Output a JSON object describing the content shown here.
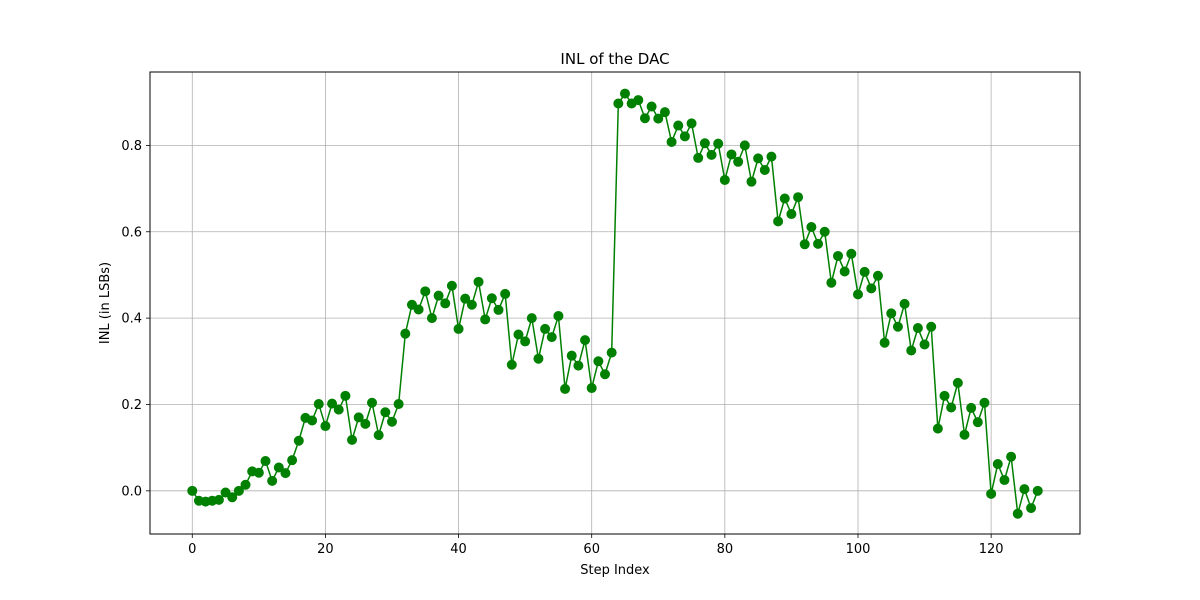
{
  "chart_data": {
    "type": "line",
    "title": "INL of the DAC",
    "xlabel": "Step Index",
    "ylabel": "INL (in LSBs)",
    "xlim": [
      -6.35,
      133.35
    ],
    "ylim": [
      -0.1,
      0.97
    ],
    "xticks": [
      0,
      20,
      40,
      60,
      80,
      100,
      120
    ],
    "yticks": [
      0.0,
      0.2,
      0.4,
      0.6,
      0.8
    ],
    "ytick_labels": [
      "0.0",
      "0.2",
      "0.4",
      "0.6",
      "0.8"
    ],
    "grid": true,
    "legend": "none",
    "series": [
      {
        "color": "#008000",
        "marker": "circle",
        "x": [
          0,
          1,
          2,
          3,
          4,
          5,
          6,
          7,
          8,
          9,
          10,
          11,
          12,
          13,
          14,
          15,
          16,
          17,
          18,
          19,
          20,
          21,
          22,
          23,
          24,
          25,
          26,
          27,
          28,
          29,
          30,
          31,
          32,
          33,
          34,
          35,
          36,
          37,
          38,
          39,
          40,
          41,
          42,
          43,
          44,
          45,
          46,
          47,
          48,
          49,
          50,
          51,
          52,
          53,
          54,
          55,
          56,
          57,
          58,
          59,
          60,
          61,
          62,
          63,
          64,
          65,
          66,
          67,
          68,
          69,
          70,
          71,
          72,
          73,
          74,
          75,
          76,
          77,
          78,
          79,
          80,
          81,
          82,
          83,
          84,
          85,
          86,
          87,
          88,
          89,
          90,
          91,
          92,
          93,
          94,
          95,
          96,
          97,
          98,
          99,
          100,
          101,
          102,
          103,
          104,
          105,
          106,
          107,
          108,
          109,
          110,
          111,
          112,
          113,
          114,
          115,
          116,
          117,
          118,
          119,
          120,
          121,
          122,
          123,
          124,
          125,
          126,
          127
        ],
        "y": [
          0.0,
          -0.023,
          -0.025,
          -0.023,
          -0.021,
          -0.004,
          -0.015,
          0.0,
          0.014,
          0.045,
          0.042,
          0.069,
          0.023,
          0.054,
          0.041,
          0.071,
          0.116,
          0.169,
          0.163,
          0.201,
          0.15,
          0.202,
          0.188,
          0.22,
          0.118,
          0.17,
          0.155,
          0.204,
          0.129,
          0.182,
          0.16,
          0.201,
          0.364,
          0.431,
          0.42,
          0.462,
          0.4,
          0.452,
          0.434,
          0.475,
          0.375,
          0.445,
          0.431,
          0.484,
          0.397,
          0.446,
          0.419,
          0.456,
          0.292,
          0.362,
          0.346,
          0.4,
          0.306,
          0.375,
          0.356,
          0.405,
          0.236,
          0.313,
          0.29,
          0.349,
          0.238,
          0.3,
          0.27,
          0.32,
          0.897,
          0.92,
          0.897,
          0.905,
          0.863,
          0.89,
          0.862,
          0.877,
          0.808,
          0.846,
          0.821,
          0.851,
          0.771,
          0.805,
          0.778,
          0.804,
          0.72,
          0.779,
          0.762,
          0.8,
          0.716,
          0.77,
          0.743,
          0.774,
          0.624,
          0.677,
          0.641,
          0.68,
          0.571,
          0.611,
          0.572,
          0.6,
          0.482,
          0.544,
          0.508,
          0.549,
          0.455,
          0.507,
          0.469,
          0.498,
          0.343,
          0.411,
          0.38,
          0.433,
          0.325,
          0.377,
          0.339,
          0.38,
          0.144,
          0.22,
          0.193,
          0.25,
          0.13,
          0.192,
          0.159,
          0.204,
          -0.007,
          0.062,
          0.025,
          0.079,
          -0.053,
          0.004,
          -0.04,
          0.0
        ]
      }
    ]
  }
}
